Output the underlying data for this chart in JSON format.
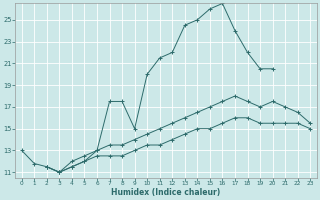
{
  "xlabel": "Humidex (Indice chaleur)",
  "background_color": "#cce8e8",
  "grid_color": "#ffffff",
  "line_color": "#2d6b6b",
  "xlim": [
    -0.5,
    23.5
  ],
  "ylim": [
    10.5,
    26.5
  ],
  "xticks": [
    0,
    1,
    2,
    3,
    4,
    5,
    6,
    7,
    8,
    9,
    10,
    11,
    12,
    13,
    14,
    15,
    16,
    17,
    18,
    19,
    20,
    21,
    22,
    23
  ],
  "yticks": [
    11,
    13,
    15,
    17,
    19,
    21,
    23,
    25
  ],
  "line1": {
    "x": [
      0,
      1,
      2,
      3,
      4,
      5,
      6,
      7,
      8,
      9,
      10,
      11,
      12,
      13,
      14,
      15,
      16,
      17,
      18,
      19,
      20
    ],
    "y": [
      13.0,
      11.8,
      11.5,
      11.0,
      12.0,
      12.5,
      13.0,
      17.5,
      17.5,
      15.0,
      20.0,
      21.5,
      22.0,
      24.5,
      25.0,
      26.0,
      26.5,
      24.0,
      22.0,
      20.5,
      20.5
    ]
  },
  "line2": {
    "x": [
      2,
      3,
      4,
      5,
      6,
      7,
      8,
      9,
      10,
      11,
      12,
      13,
      14,
      15,
      16,
      17,
      18,
      19,
      20,
      21,
      22,
      23
    ],
    "y": [
      11.5,
      11.0,
      11.5,
      12.0,
      13.0,
      13.5,
      13.5,
      14.0,
      14.5,
      15.0,
      15.5,
      16.0,
      16.5,
      17.0,
      17.5,
      18.0,
      17.5,
      17.0,
      17.5,
      17.0,
      16.5,
      15.5
    ]
  },
  "line3": {
    "x": [
      2,
      3,
      4,
      5,
      6,
      7,
      8,
      9,
      10,
      11,
      12,
      13,
      14,
      15,
      16,
      17,
      18,
      19,
      20,
      21,
      22,
      23
    ],
    "y": [
      11.5,
      11.0,
      11.5,
      12.0,
      12.5,
      12.5,
      12.5,
      13.0,
      13.5,
      13.5,
      14.0,
      14.5,
      15.0,
      15.0,
      15.5,
      16.0,
      16.0,
      15.5,
      15.5,
      15.5,
      15.5,
      15.0
    ]
  }
}
